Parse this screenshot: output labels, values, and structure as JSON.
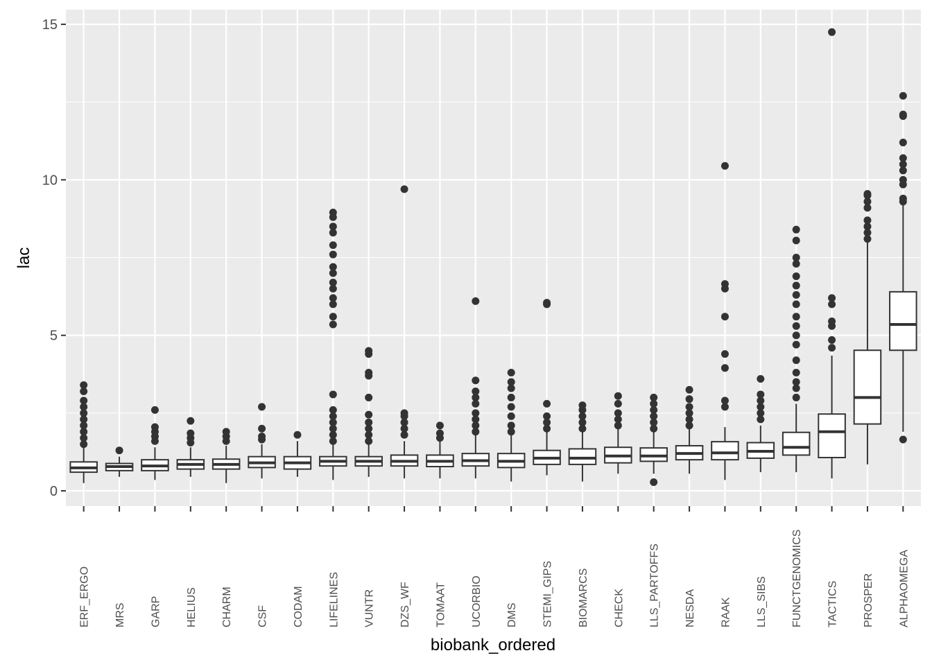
{
  "chart_data": {
    "type": "boxplot",
    "x_label": "biobank_ordered",
    "y_label": "lac",
    "categories": [
      "ERF_ERGO",
      "MRS",
      "GARP",
      "HELIUS",
      "CHARM",
      "CSF",
      "CODAM",
      "LIFELINES",
      "VUNTR",
      "DZS_WF",
      "TOMAAT",
      "UCORBIO",
      "DMS",
      "STEMI_GIPS",
      "BIOMARCS",
      "CHECK",
      "LLS_PARTOFFS",
      "NESDA",
      "RAAK",
      "LLS_SIBS",
      "FUNCTGENOMICS",
      "TACTICS",
      "PROSPER",
      "ALPHAOMEGA"
    ],
    "boxes": [
      {
        "low": 0.25,
        "q1": 0.6,
        "median": 0.74,
        "q3": 0.93,
        "high": 1.4,
        "outliers": [
          1.5,
          1.7,
          1.9,
          2.1,
          2.3,
          2.5,
          2.7,
          2.9,
          3.2,
          3.4
        ]
      },
      {
        "low": 0.45,
        "q1": 0.65,
        "median": 0.78,
        "q3": 0.88,
        "high": 1.1,
        "outliers": [
          1.3
        ]
      },
      {
        "low": 0.35,
        "q1": 0.65,
        "median": 0.8,
        "q3": 1.0,
        "high": 1.4,
        "outliers": [
          1.6,
          1.75,
          1.9,
          2.05,
          2.6
        ]
      },
      {
        "low": 0.45,
        "q1": 0.7,
        "median": 0.85,
        "q3": 1.0,
        "high": 1.4,
        "outliers": [
          1.55,
          1.7,
          1.85,
          2.25
        ]
      },
      {
        "low": 0.25,
        "q1": 0.7,
        "median": 0.85,
        "q3": 1.02,
        "high": 1.45,
        "outliers": [
          1.6,
          1.75,
          1.9
        ]
      },
      {
        "low": 0.4,
        "q1": 0.75,
        "median": 0.9,
        "q3": 1.1,
        "high": 1.5,
        "outliers": [
          1.65,
          1.75,
          2.0,
          2.7
        ]
      },
      {
        "low": 0.45,
        "q1": 0.7,
        "median": 0.9,
        "q3": 1.1,
        "high": 1.6,
        "outliers": [
          1.8
        ]
      },
      {
        "low": 0.35,
        "q1": 0.8,
        "median": 0.95,
        "q3": 1.1,
        "high": 1.5,
        "outliers": [
          1.6,
          1.8,
          2.0,
          2.2,
          2.4,
          2.6,
          3.1,
          5.35,
          5.6,
          6.0,
          6.2,
          6.5,
          6.7,
          7.0,
          7.2,
          7.6,
          7.9,
          8.3,
          8.5,
          8.8,
          8.95
        ]
      },
      {
        "low": 0.45,
        "q1": 0.8,
        "median": 0.95,
        "q3": 1.1,
        "high": 1.5,
        "outliers": [
          1.6,
          1.8,
          2.0,
          2.2,
          2.45,
          3.0,
          3.7,
          3.8,
          4.4,
          4.5
        ]
      },
      {
        "low": 0.4,
        "q1": 0.8,
        "median": 0.95,
        "q3": 1.15,
        "high": 1.6,
        "outliers": [
          1.8,
          2.0,
          2.2,
          2.4,
          2.5,
          9.7
        ]
      },
      {
        "low": 0.4,
        "q1": 0.78,
        "median": 0.95,
        "q3": 1.15,
        "high": 1.6,
        "outliers": [
          1.7,
          1.85,
          2.1
        ]
      },
      {
        "low": 0.4,
        "q1": 0.8,
        "median": 0.97,
        "q3": 1.2,
        "high": 1.8,
        "outliers": [
          1.9,
          2.1,
          2.3,
          2.5,
          2.8,
          3.0,
          3.2,
          3.55,
          6.1
        ]
      },
      {
        "low": 0.3,
        "q1": 0.75,
        "median": 0.95,
        "q3": 1.2,
        "high": 1.8,
        "outliers": [
          1.9,
          2.1,
          2.4,
          2.7,
          3.0,
          3.3,
          3.5,
          3.8
        ]
      },
      {
        "low": 0.5,
        "q1": 0.85,
        "median": 1.05,
        "q3": 1.3,
        "high": 1.9,
        "outliers": [
          2.0,
          2.2,
          2.4,
          2.8,
          6.0,
          6.05
        ]
      },
      {
        "low": 0.3,
        "q1": 0.85,
        "median": 1.05,
        "q3": 1.35,
        "high": 1.9,
        "outliers": [
          2.0,
          2.2,
          2.4,
          2.6,
          2.75
        ]
      },
      {
        "low": 0.55,
        "q1": 0.9,
        "median": 1.12,
        "q3": 1.4,
        "high": 2.0,
        "outliers": [
          2.1,
          2.3,
          2.5,
          2.8,
          3.05
        ]
      },
      {
        "low": 0.55,
        "q1": 0.95,
        "median": 1.12,
        "q3": 1.38,
        "high": 1.9,
        "outliers": [
          0.28,
          2.0,
          2.2,
          2.4,
          2.6,
          2.8,
          3.0
        ]
      },
      {
        "low": 0.55,
        "q1": 1.0,
        "median": 1.2,
        "q3": 1.45,
        "high": 2.0,
        "outliers": [
          2.1,
          2.3,
          2.5,
          2.7,
          2.95,
          3.25
        ]
      },
      {
        "low": 0.35,
        "q1": 1.0,
        "median": 1.22,
        "q3": 1.58,
        "high": 2.05,
        "outliers": [
          2.7,
          2.9,
          3.95,
          4.4,
          5.6,
          6.5,
          6.65,
          10.45
        ]
      },
      {
        "low": 0.6,
        "q1": 1.05,
        "median": 1.27,
        "q3": 1.55,
        "high": 2.1,
        "outliers": [
          2.3,
          2.5,
          2.7,
          2.9,
          3.1,
          3.6
        ]
      },
      {
        "low": 0.6,
        "q1": 1.15,
        "median": 1.4,
        "q3": 1.88,
        "high": 2.8,
        "outliers": [
          3.0,
          3.3,
          3.5,
          3.8,
          4.2,
          4.7,
          5.0,
          5.3,
          5.6,
          6.0,
          6.3,
          6.6,
          6.9,
          7.3,
          7.5,
          8.05,
          8.4
        ]
      },
      {
        "low": 0.4,
        "q1": 1.07,
        "median": 1.9,
        "q3": 2.47,
        "high": 4.35,
        "outliers": [
          4.6,
          4.85,
          5.3,
          5.45,
          6.0,
          6.2,
          14.75
        ]
      },
      {
        "low": 0.85,
        "q1": 2.15,
        "median": 3.0,
        "q3": 4.52,
        "high": 8.0,
        "outliers": [
          8.1,
          8.3,
          8.5,
          8.7,
          9.1,
          9.3,
          9.5,
          9.55
        ]
      },
      {
        "low": 1.9,
        "q1": 4.52,
        "median": 5.35,
        "q3": 6.4,
        "high": 9.2,
        "outliers": [
          1.65,
          9.3,
          9.4,
          9.85,
          10.0,
          10.3,
          10.5,
          10.7,
          11.2,
          12.05,
          12.1,
          12.7
        ]
      }
    ],
    "color": "#333333",
    "fill": "#ffffff",
    "panel_color": "#ebebeb",
    "ylim": [
      -0.49,
      15.47
    ],
    "yticks": [
      0,
      5,
      10,
      15
    ],
    "y_minor_grid": [
      2.5,
      7.5,
      12.5
    ],
    "grid": true
  }
}
